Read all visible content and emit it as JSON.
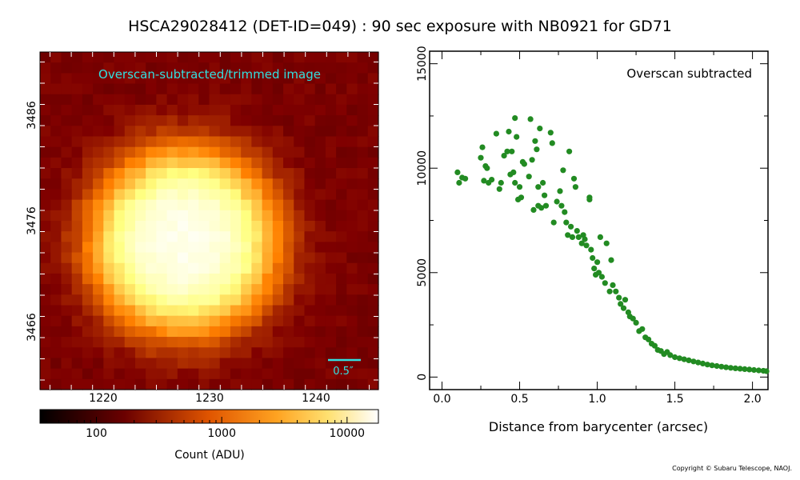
{
  "title": "HSCA29028412 (DET-ID=049) :  90 sec exposure with NB0921 for GD71",
  "copyright": "Copyright © Subaru Telescope, NAOJ.",
  "image_panel": {
    "label": "Overscan-subtracted/trimmed image",
    "label_color": "#33e0e0",
    "scale_bar_label": "0.5″",
    "x_ticks": [
      "1220",
      "1230",
      "1240"
    ],
    "y_ticks": [
      "3466",
      "3476",
      "3486"
    ],
    "colorbar": {
      "ticks": [
        "100",
        "1000",
        "10000"
      ],
      "label": "Count (ADU)",
      "range_log10": [
        1.55,
        4.25
      ],
      "colormap": "afmhot"
    }
  },
  "chart_data": {
    "type": "scatter",
    "annotation": "Overscan subtracted",
    "xlabel": "Distance from barycenter (arcsec)",
    "ylabel": "",
    "xlim": [
      -0.08,
      2.1
    ],
    "ylim": [
      -600,
      15600
    ],
    "x_ticks": [
      "0.0",
      "0.5",
      "1.0",
      "1.5",
      "2.0"
    ],
    "y_ticks": [
      "0",
      "5000",
      "10000",
      "15000"
    ],
    "color": "#228b22",
    "series": [
      {
        "points": [
          [
            0.1,
            9800
          ],
          [
            0.11,
            9300
          ],
          [
            0.13,
            9550
          ],
          [
            0.15,
            9500
          ],
          [
            0.25,
            10500
          ],
          [
            0.26,
            11000
          ],
          [
            0.27,
            9400
          ],
          [
            0.28,
            10100
          ],
          [
            0.29,
            10000
          ],
          [
            0.3,
            9300
          ],
          [
            0.32,
            9450
          ],
          [
            0.35,
            11650
          ],
          [
            0.37,
            9000
          ],
          [
            0.38,
            9300
          ],
          [
            0.4,
            10600
          ],
          [
            0.42,
            10800
          ],
          [
            0.43,
            11750
          ],
          [
            0.44,
            9700
          ],
          [
            0.45,
            10800
          ],
          [
            0.46,
            9800
          ],
          [
            0.47,
            12400
          ],
          [
            0.47,
            9300
          ],
          [
            0.48,
            11500
          ],
          [
            0.49,
            8500
          ],
          [
            0.5,
            9100
          ],
          [
            0.51,
            8600
          ],
          [
            0.52,
            10300
          ],
          [
            0.53,
            10200
          ],
          [
            0.56,
            9600
          ],
          [
            0.57,
            12350
          ],
          [
            0.58,
            10400
          ],
          [
            0.59,
            8000
          ],
          [
            0.6,
            11300
          ],
          [
            0.61,
            10900
          ],
          [
            0.62,
            8200
          ],
          [
            0.62,
            9100
          ],
          [
            0.63,
            11900
          ],
          [
            0.64,
            8100
          ],
          [
            0.65,
            9300
          ],
          [
            0.66,
            8700
          ],
          [
            0.67,
            8200
          ],
          [
            0.7,
            11700
          ],
          [
            0.71,
            11200
          ],
          [
            0.72,
            7400
          ],
          [
            0.74,
            8400
          ],
          [
            0.76,
            8900
          ],
          [
            0.77,
            8200
          ],
          [
            0.78,
            9900
          ],
          [
            0.79,
            7900
          ],
          [
            0.8,
            7400
          ],
          [
            0.81,
            6800
          ],
          [
            0.82,
            10800
          ],
          [
            0.83,
            7200
          ],
          [
            0.84,
            6700
          ],
          [
            0.85,
            9500
          ],
          [
            0.86,
            9100
          ],
          [
            0.87,
            7000
          ],
          [
            0.88,
            6700
          ],
          [
            0.9,
            6400
          ],
          [
            0.91,
            6800
          ],
          [
            0.92,
            6600
          ],
          [
            0.93,
            6300
          ],
          [
            0.95,
            8600
          ],
          [
            0.95,
            8500
          ],
          [
            0.96,
            6100
          ],
          [
            0.97,
            5700
          ],
          [
            0.98,
            5200
          ],
          [
            0.99,
            4900
          ],
          [
            1.0,
            5500
          ],
          [
            1.01,
            5000
          ],
          [
            1.02,
            6700
          ],
          [
            1.03,
            4800
          ],
          [
            1.05,
            4500
          ],
          [
            1.06,
            6400
          ],
          [
            1.08,
            4100
          ],
          [
            1.09,
            5600
          ],
          [
            1.1,
            4400
          ],
          [
            1.12,
            4100
          ],
          [
            1.14,
            3800
          ],
          [
            1.15,
            3500
          ],
          [
            1.17,
            3300
          ],
          [
            1.18,
            3700
          ],
          [
            1.2,
            3100
          ],
          [
            1.21,
            2900
          ],
          [
            1.23,
            2800
          ],
          [
            1.25,
            2600
          ],
          [
            1.27,
            2200
          ],
          [
            1.29,
            2300
          ],
          [
            1.31,
            1900
          ],
          [
            1.33,
            1800
          ],
          [
            1.35,
            1600
          ],
          [
            1.37,
            1500
          ],
          [
            1.39,
            1300
          ],
          [
            1.41,
            1250
          ],
          [
            1.43,
            1100
          ],
          [
            1.45,
            1200
          ],
          [
            1.47,
            1050
          ],
          [
            1.5,
            950
          ],
          [
            1.53,
            900
          ],
          [
            1.56,
            850
          ],
          [
            1.59,
            800
          ],
          [
            1.62,
            750
          ],
          [
            1.65,
            700
          ],
          [
            1.68,
            650
          ],
          [
            1.71,
            600
          ],
          [
            1.74,
            560
          ],
          [
            1.77,
            530
          ],
          [
            1.8,
            500
          ],
          [
            1.83,
            470
          ],
          [
            1.86,
            440
          ],
          [
            1.89,
            420
          ],
          [
            1.92,
            400
          ],
          [
            1.95,
            380
          ],
          [
            1.98,
            360
          ],
          [
            2.01,
            340
          ],
          [
            2.04,
            320
          ],
          [
            2.07,
            300
          ],
          [
            2.09,
            280
          ]
        ]
      }
    ]
  }
}
